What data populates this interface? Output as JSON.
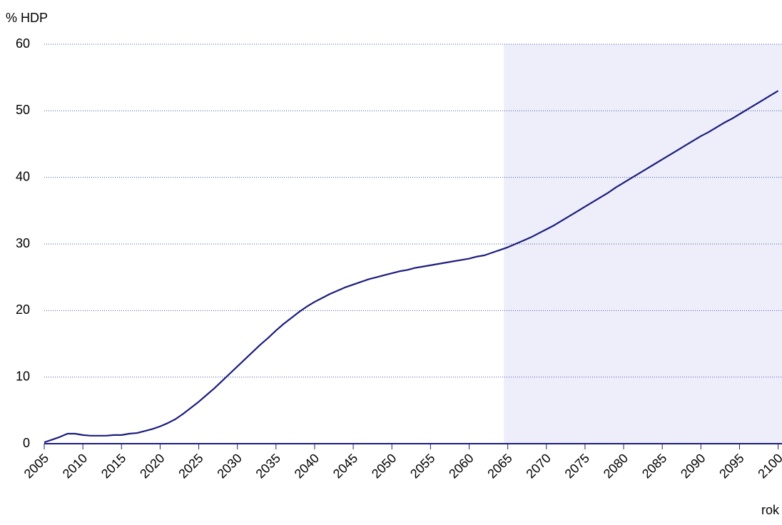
{
  "chart_data": {
    "type": "line",
    "y_label": "% HDP",
    "x_label": "rok",
    "x": [
      2005,
      2006,
      2007,
      2008,
      2009,
      2010,
      2011,
      2012,
      2013,
      2014,
      2015,
      2016,
      2017,
      2018,
      2019,
      2020,
      2021,
      2022,
      2023,
      2024,
      2025,
      2026,
      2027,
      2028,
      2029,
      2030,
      2031,
      2032,
      2033,
      2034,
      2035,
      2036,
      2037,
      2038,
      2039,
      2040,
      2041,
      2042,
      2043,
      2044,
      2045,
      2046,
      2047,
      2048,
      2049,
      2050,
      2051,
      2052,
      2053,
      2054,
      2055,
      2056,
      2057,
      2058,
      2059,
      2060,
      2061,
      2062,
      2063,
      2064,
      2065,
      2066,
      2067,
      2068,
      2069,
      2070,
      2071,
      2072,
      2073,
      2074,
      2075,
      2076,
      2077,
      2078,
      2079,
      2080,
      2081,
      2082,
      2083,
      2084,
      2085,
      2086,
      2087,
      2088,
      2089,
      2090,
      2091,
      2092,
      2093,
      2094,
      2095,
      2096,
      2097,
      2098,
      2099,
      2100
    ],
    "values": [
      0.2,
      0.6,
      1.0,
      1.5,
      1.5,
      1.3,
      1.2,
      1.2,
      1.2,
      1.3,
      1.3,
      1.5,
      1.6,
      1.9,
      2.2,
      2.6,
      3.1,
      3.7,
      4.5,
      5.4,
      6.3,
      7.3,
      8.3,
      9.4,
      10.5,
      11.6,
      12.7,
      13.8,
      14.9,
      15.9,
      17.0,
      18.0,
      18.9,
      19.8,
      20.6,
      21.3,
      21.9,
      22.5,
      23.0,
      23.5,
      23.9,
      24.3,
      24.7,
      25.0,
      25.3,
      25.6,
      25.9,
      26.1,
      26.4,
      26.6,
      26.8,
      27.0,
      27.2,
      27.4,
      27.6,
      27.8,
      28.1,
      28.3,
      28.7,
      29.1,
      29.5,
      30.0,
      30.5,
      31.0,
      31.6,
      32.2,
      32.8,
      33.5,
      34.2,
      34.9,
      35.6,
      36.3,
      37.0,
      37.7,
      38.5,
      39.2,
      39.9,
      40.6,
      41.3,
      42.0,
      42.7,
      43.4,
      44.1,
      44.8,
      45.5,
      46.2,
      46.8,
      47.5,
      48.2,
      48.8,
      49.5,
      50.2,
      50.9,
      51.6,
      52.3,
      53.0
    ],
    "color": "#1c1c7e",
    "shaded_range": [
      2064.5,
      2100.5
    ],
    "shade_color": "#eeeefa",
    "xlim": [
      2005,
      2100.5
    ],
    "ylim": [
      0,
      60
    ],
    "xticks": [
      2005,
      2010,
      2015,
      2020,
      2025,
      2030,
      2035,
      2040,
      2045,
      2050,
      2055,
      2060,
      2065,
      2070,
      2075,
      2080,
      2085,
      2090,
      2095,
      2100
    ],
    "yticks": [
      0,
      10,
      20,
      30,
      40,
      50,
      60
    ],
    "grid": true
  }
}
